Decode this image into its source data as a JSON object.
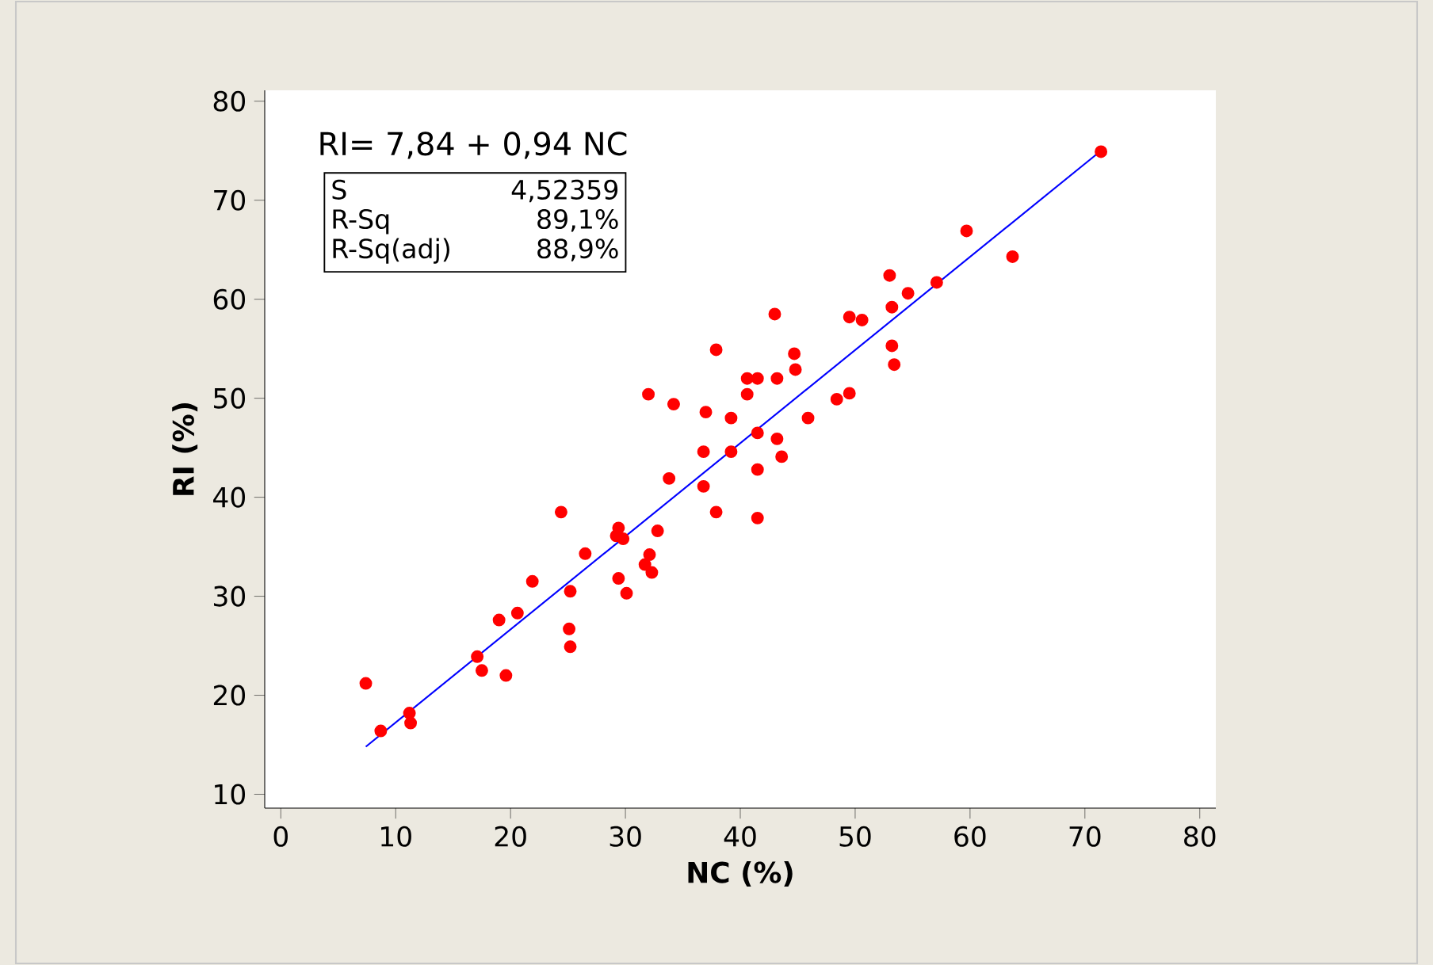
{
  "chart_data": {
    "type": "scatter",
    "xlabel": "NC (%)",
    "ylabel": "RI (%)",
    "xlim": [
      -1.4,
      81.4
    ],
    "ylim": [
      8.6,
      81.1
    ],
    "xticks": [
      0,
      10,
      20,
      30,
      40,
      50,
      60,
      70,
      80
    ],
    "yticks": [
      10,
      20,
      30,
      40,
      50,
      60,
      70,
      80
    ],
    "annotations": [
      "RI= 7,84 + 0,94 NC",
      "S",
      "4,52359",
      "R-Sq",
      "89,1%",
      "R-Sq(adj)",
      "88,9%"
    ],
    "series": [
      {
        "type": "scatter",
        "marker": "circle",
        "color": "#ff0000",
        "x": [
          7.4,
          8.7,
          11.2,
          11.3,
          17.1,
          17.5,
          19.0,
          19.6,
          20.6,
          21.9,
          24.4,
          25.1,
          25.2,
          25.2,
          26.5,
          29.2,
          29.4,
          29.4,
          29.8,
          30.1,
          31.7,
          32.0,
          32.1,
          32.3,
          32.8,
          33.8,
          34.2,
          36.8,
          36.8,
          37.0,
          37.9,
          37.9,
          39.2,
          39.2,
          40.6,
          40.6,
          41.5,
          41.5,
          41.5,
          41.5,
          43.0,
          43.2,
          43.2,
          43.6,
          44.7,
          44.8,
          45.9,
          48.4,
          49.5,
          49.5,
          50.6,
          53.0,
          53.2,
          53.2,
          53.4,
          54.6,
          57.1,
          59.7,
          63.7,
          71.4
        ],
        "values": [
          21.2,
          16.4,
          18.2,
          17.2,
          23.9,
          22.5,
          27.6,
          22.0,
          28.3,
          31.5,
          38.5,
          26.7,
          24.9,
          30.5,
          34.3,
          36.1,
          36.9,
          31.8,
          35.8,
          30.3,
          33.2,
          50.4,
          34.2,
          32.4,
          36.6,
          41.9,
          49.4,
          44.6,
          41.1,
          48.6,
          38.5,
          54.9,
          48.0,
          44.6,
          52.0,
          50.4,
          52.0,
          46.5,
          42.8,
          37.9,
          58.5,
          52.0,
          45.9,
          44.1,
          54.5,
          52.9,
          48.0,
          49.9,
          50.5,
          58.2,
          57.9,
          62.4,
          59.2,
          55.3,
          53.4,
          60.6,
          61.7,
          66.9,
          64.3,
          74.9
        ]
      },
      {
        "type": "line",
        "color": "#0000ff",
        "marker": "none",
        "x": [
          7.4,
          71.4
        ],
        "values": [
          14.8,
          75.0
        ]
      }
    ]
  }
}
